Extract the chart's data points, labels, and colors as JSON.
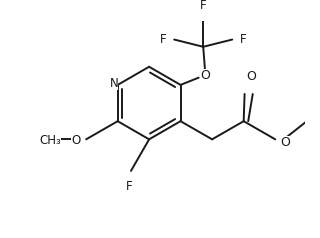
{
  "bg_color": "#ffffff",
  "line_color": "#1a1a1a",
  "line_width": 1.4,
  "font_size": 8.5,
  "figsize": [
    3.2,
    2.38
  ],
  "dpi": 100,
  "xlim": [
    0,
    320
  ],
  "ylim": [
    0,
    238
  ]
}
